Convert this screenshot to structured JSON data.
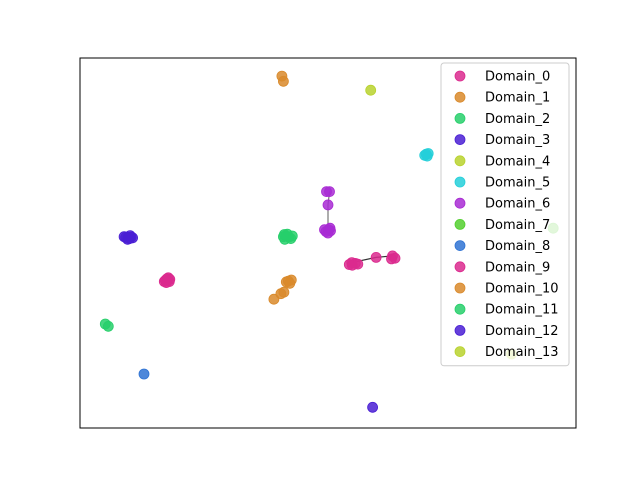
{
  "chart_data": {
    "type": "scatter",
    "title": "",
    "xlabel": "",
    "ylabel": "",
    "axes_ticks": false,
    "grid": false,
    "legend_position": "top-right",
    "xlim": [
      0,
      100
    ],
    "ylim": [
      0,
      100
    ],
    "series": [
      {
        "name": "Domain_0",
        "color": "#db2a8e",
        "points": [
          [
            17.6,
            39.9
          ],
          [
            17.2,
            39.9
          ],
          [
            18.0,
            39.6
          ],
          [
            17.5,
            40.3
          ],
          [
            17.0,
            39.6
          ],
          [
            18.1,
            40.2
          ],
          [
            17.4,
            39.3
          ],
          [
            17.8,
            40.6
          ]
        ]
      },
      {
        "name": "Domain_1",
        "color": "#d98a2b",
        "points": [
          [
            40.7,
            95.1
          ],
          [
            41.0,
            93.7
          ]
        ]
      },
      {
        "name": "Domain_2",
        "color": "#27cf6b",
        "points": [
          [
            41.0,
            51.7
          ],
          [
            41.5,
            51.9
          ],
          [
            42.1,
            51.6
          ],
          [
            41.3,
            51.0
          ],
          [
            42.5,
            51.2
          ],
          [
            41.8,
            52.4
          ],
          [
            42.8,
            51.9
          ],
          [
            41.2,
            52.3
          ]
        ]
      },
      {
        "name": "Domain_3",
        "color": "#4a1fd4",
        "points": [
          [
            9.7,
            51.5
          ],
          [
            9.2,
            51.5
          ],
          [
            10.6,
            51.4
          ],
          [
            10.1,
            52.0
          ],
          [
            9.6,
            51.0
          ],
          [
            10.3,
            51.6
          ],
          [
            8.9,
            51.7
          ],
          [
            10.0,
            51.2
          ]
        ]
      },
      {
        "name": "Domain_4",
        "color": "#b8d22e",
        "points": [
          [
            58.6,
            91.3
          ]
        ]
      },
      {
        "name": "Domain_5",
        "color": "#25cfd9",
        "points": [
          [
            69.5,
            73.7
          ],
          [
            70.2,
            74.2
          ],
          [
            70.0,
            73.5
          ],
          [
            69.8,
            74.0
          ]
        ]
      },
      {
        "name": "Domain_6",
        "color": "#a82bd3",
        "points": [
          [
            49.7,
            63.9
          ],
          [
            50.3,
            63.9
          ],
          [
            50.0,
            60.3
          ],
          [
            50.1,
            53.6
          ],
          [
            49.6,
            53.1
          ],
          [
            50.5,
            53.3
          ],
          [
            49.3,
            53.6
          ],
          [
            50.0,
            52.7
          ],
          [
            50.4,
            54.0
          ]
        ]
      },
      {
        "name": "Domain_7",
        "color": "#53cf2f",
        "points": [
          [
            95.4,
            54.0
          ]
        ]
      },
      {
        "name": "Domain_8",
        "color": "#2f73d3",
        "points": [
          [
            12.9,
            14.6
          ]
        ]
      },
      {
        "name": "Domain_9",
        "color": "#db2a8e",
        "points": [
          [
            54.8,
            44.7
          ],
          [
            55.5,
            44.5
          ],
          [
            54.3,
            44.2
          ],
          [
            54.9,
            44.0
          ],
          [
            56.0,
            44.3
          ],
          [
            59.7,
            46.1
          ],
          [
            63.0,
            46.5
          ],
          [
            63.5,
            45.9
          ],
          [
            62.8,
            45.7
          ]
        ]
      },
      {
        "name": "Domain_10",
        "color": "#d98a2b",
        "points": [
          [
            39.1,
            34.8
          ],
          [
            40.5,
            36.3
          ],
          [
            41.1,
            36.7
          ],
          [
            42.0,
            39.7
          ],
          [
            42.6,
            40.0
          ],
          [
            41.6,
            39.5
          ],
          [
            42.3,
            39.1
          ]
        ]
      },
      {
        "name": "Domain_11",
        "color": "#27cf6b",
        "points": [
          [
            5.1,
            28.1
          ],
          [
            5.7,
            27.5
          ]
        ]
      },
      {
        "name": "Domain_12",
        "color": "#4a1fd4",
        "points": [
          [
            59.0,
            5.6
          ]
        ]
      },
      {
        "name": "Domain_13",
        "color": "#b8d22e",
        "points": [
          [
            87.0,
            20.0
          ]
        ]
      }
    ],
    "lines": [
      {
        "color": "#000000",
        "points": [
          [
            54.8,
            44.7
          ],
          [
            59.7,
            46.1
          ],
          [
            63.0,
            46.5
          ]
        ]
      },
      {
        "color": "#555555",
        "points": [
          [
            50.3,
            63.9
          ],
          [
            50.0,
            60.3
          ],
          [
            50.0,
            53.6
          ]
        ]
      }
    ]
  }
}
